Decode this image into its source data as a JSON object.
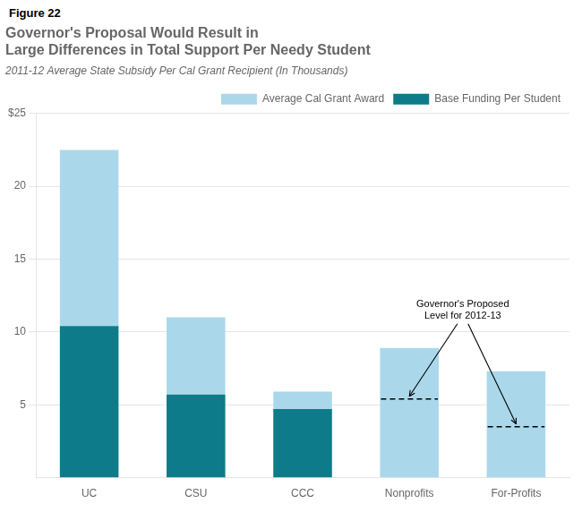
{
  "chart_data": {
    "type": "bar",
    "figure_label": "Figure 22",
    "title": "Governor's Proposal Would Result in\nLarge Differences in Total Support Per Needy Student",
    "subtitle": "2011-12 Average State Subsidy Per Cal Grant Recipient (In Thousands)",
    "categories": [
      "UC",
      "CSU",
      "CCC",
      "Nonprofits",
      "For-Profits"
    ],
    "series": [
      {
        "name": "Average Cal Grant Award",
        "color": "#aad8ea",
        "values": [
          12.1,
          5.3,
          1.2,
          8.9,
          7.3
        ]
      },
      {
        "name": "Base Funding Per Student",
        "color": "#0d7b8a",
        "values": [
          10.4,
          5.7,
          4.7,
          0.0,
          0.0
        ]
      }
    ],
    "stacked": true,
    "proposed_levels": {
      "values": [
        null,
        null,
        null,
        5.4,
        3.5
      ],
      "line_style": "dashed"
    },
    "annotation": "Governor's Proposed\nLevel for 2012-13",
    "ylim": [
      0,
      25
    ],
    "yticks": [
      5,
      10,
      15,
      20,
      {
        "value": 25,
        "label": "$25"
      }
    ],
    "grid": true,
    "legend": "top-right"
  }
}
